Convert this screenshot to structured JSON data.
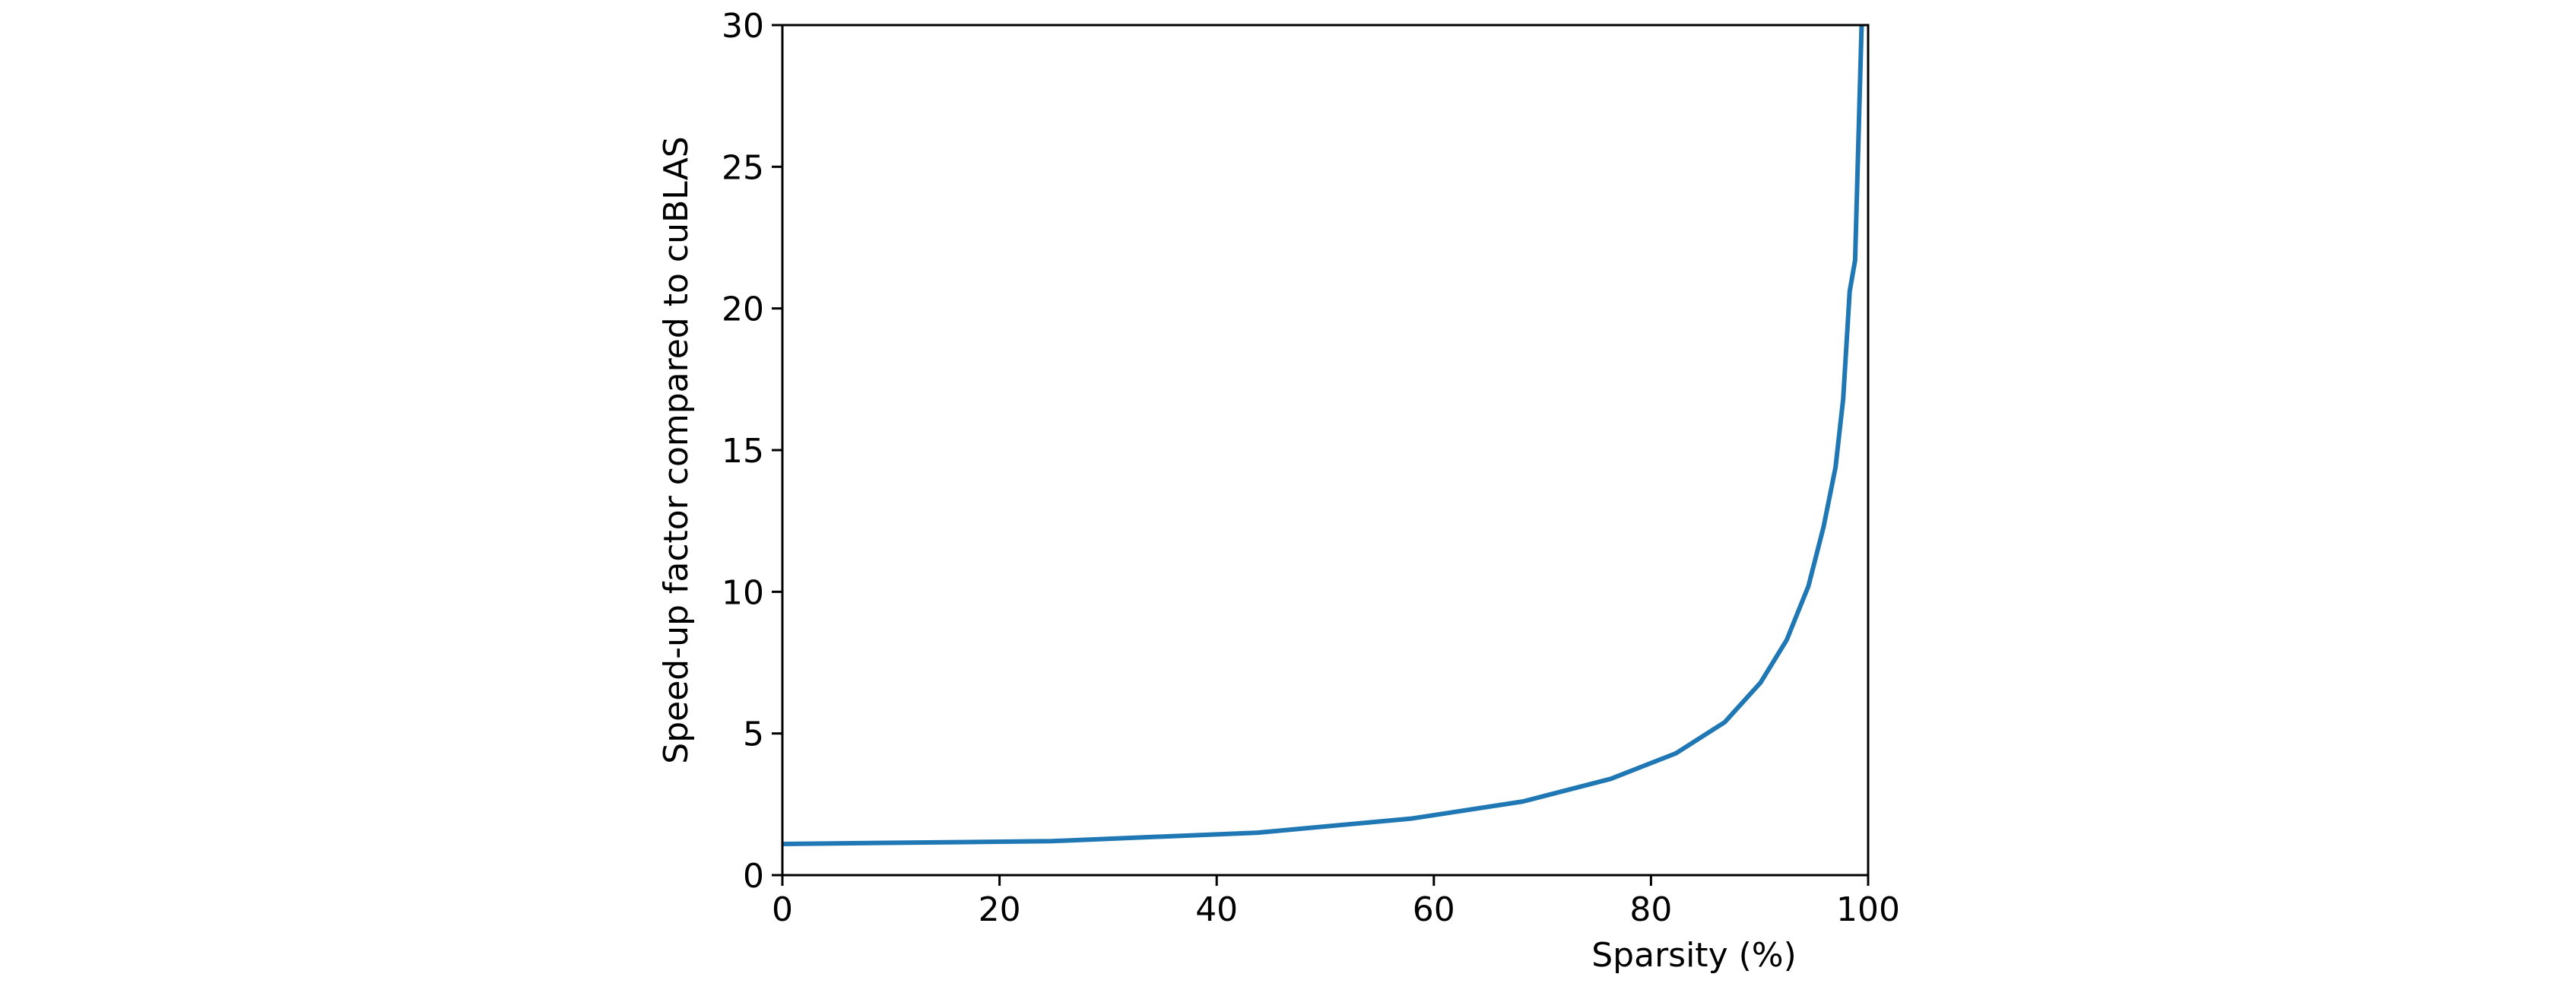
{
  "chart_data": {
    "type": "line",
    "x_label": "Sparsity (%)",
    "y_label": "Speed-up factor compared to cuBLAS",
    "x": [
      0,
      24.8,
      43.8,
      58,
      68.2,
      76.3,
      82.3,
      86.8,
      90.1,
      92.5,
      94.5,
      95.9,
      97.0,
      97.7,
      98.3,
      98.8,
      99.4
    ],
    "series": [
      {
        "color": "#1f77b4",
        "values": [
          1.1,
          1.2,
          1.5,
          2.0,
          2.6,
          3.4,
          4.3,
          5.4,
          6.8,
          8.3,
          10.2,
          12.3,
          14.4,
          16.8,
          20.6,
          21.7,
          30
        ]
      }
    ],
    "xlim": [
      0,
      100
    ],
    "xticks": [
      0,
      20,
      40,
      60,
      80,
      100
    ],
    "ylim": [
      0,
      30
    ],
    "yticks": [
      0,
      5,
      10,
      15,
      20,
      25,
      30
    ]
  }
}
